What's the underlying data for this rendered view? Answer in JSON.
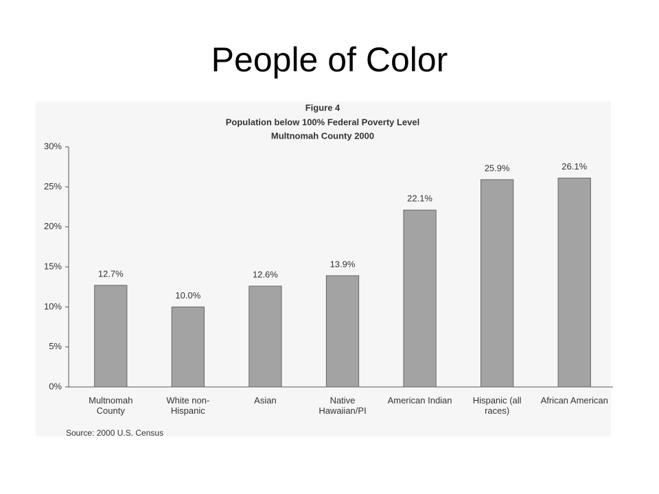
{
  "slide": {
    "title": "People of Color"
  },
  "chart_data": {
    "type": "bar",
    "title": "Figure 4",
    "subtitle": [
      "Population below 100% Federal Poverty Level",
      "Multnomah County 2000"
    ],
    "categories": [
      "Multnomah County",
      "White non-Hispanic",
      "Asian",
      "Native Hawaiian/PI",
      "American Indian",
      "Hispanic (all races)",
      "African American"
    ],
    "values": [
      12.7,
      10.0,
      12.6,
      13.9,
      22.1,
      25.9,
      26.1
    ],
    "value_labels": [
      "12.7%",
      "10.0%",
      "12.6%",
      "13.9%",
      "22.1%",
      "25.9%",
      "26.1%"
    ],
    "color": "#a3a3a3",
    "ylim": [
      0,
      30
    ],
    "yticks": [
      {
        "value": 0,
        "label": "0%"
      },
      {
        "value": 5,
        "label": "5%"
      },
      {
        "value": 10,
        "label": "10%"
      },
      {
        "value": 15,
        "label": "15%"
      },
      {
        "value": 20,
        "label": "20%"
      },
      {
        "value": 25,
        "label": "25%"
      },
      {
        "value": 30,
        "label": "30%"
      }
    ],
    "grid": false,
    "source": "Source: 2000 U.S. Census"
  }
}
